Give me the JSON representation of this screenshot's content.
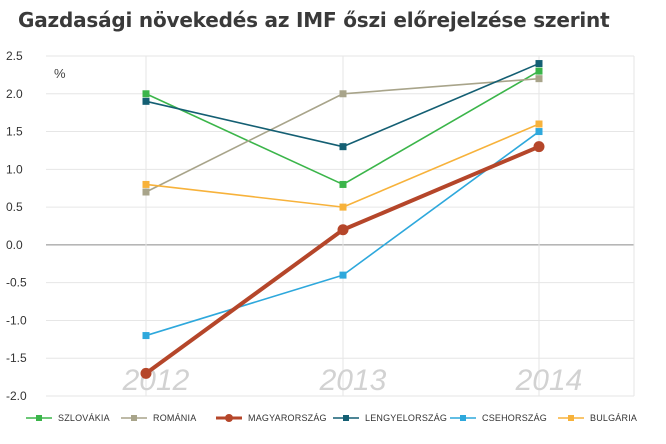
{
  "chart_data": {
    "type": "line",
    "title": "Gazdasági növekedés az IMF őszi előrejelzése szerint",
    "unit_label": "%",
    "xlabel": "",
    "ylabel": "",
    "categories": [
      "2012",
      "2013",
      "2014"
    ],
    "ylim": [
      -2.0,
      2.5
    ],
    "yticks": [
      "2.5",
      "2.0",
      "1.5",
      "1.0",
      "0.5",
      "0.0",
      "-0.5",
      "-1.0",
      "-1.5",
      "-2.0"
    ],
    "grid": true,
    "legend_position": "bottom",
    "series": [
      {
        "name": "SZLOVÁKIA",
        "values": [
          2.0,
          0.8,
          2.3
        ],
        "color": "#3bb54a",
        "marker": "square"
      },
      {
        "name": "ROMÁNIA",
        "values": [
          0.7,
          2.0,
          2.2
        ],
        "color": "#a8a48a",
        "marker": "square"
      },
      {
        "name": "MAGYARORSZÁG",
        "values": [
          -1.7,
          0.2,
          1.3
        ],
        "color": "#b5462a",
        "marker": "circle",
        "bold": true
      },
      {
        "name": "LENGYELORSZÁG",
        "values": [
          1.9,
          1.3,
          2.4
        ],
        "color": "#145f73",
        "marker": "square"
      },
      {
        "name": "CSEHORSZÁG",
        "values": [
          -1.2,
          -0.4,
          1.5
        ],
        "color": "#2ea8dc",
        "marker": "square"
      },
      {
        "name": "BULGÁRIA",
        "values": [
          0.8,
          0.5,
          1.6
        ],
        "color": "#f7b23b",
        "marker": "square"
      }
    ]
  }
}
